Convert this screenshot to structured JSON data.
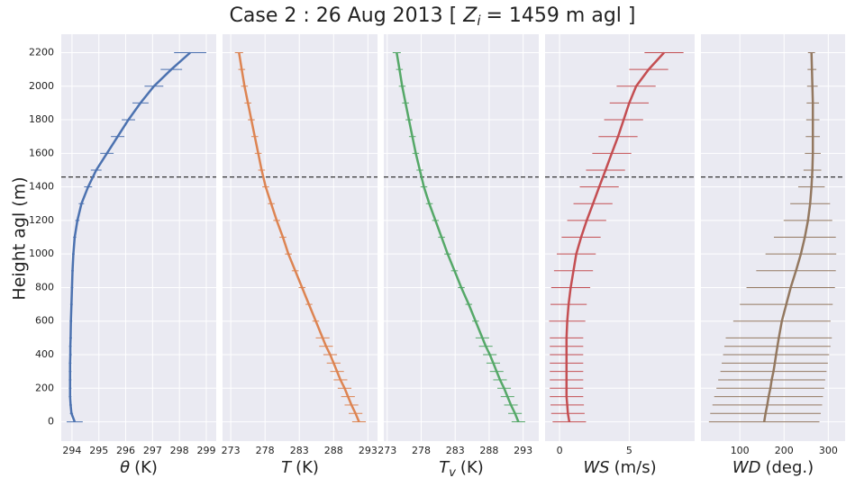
{
  "chart_data": {
    "type": "line",
    "title": {
      "prefix": "Case 2 : 26 Aug 2013 [",
      "var": "Z",
      "sub": "i",
      "suffix": "=  1459 m agl ]"
    },
    "zi": 1459,
    "ylabel": "Height agl (m)",
    "heights": [
      0,
      50,
      100,
      150,
      200,
      250,
      300,
      350,
      400,
      450,
      500,
      600,
      700,
      800,
      900,
      1000,
      1100,
      1200,
      1300,
      1400,
      1500,
      1600,
      1700,
      1800,
      1900,
      2000,
      2100,
      2200
    ],
    "ylim": [
      -115,
      2310
    ],
    "yticks": [
      0,
      200,
      400,
      600,
      800,
      1000,
      1200,
      1400,
      1600,
      1800,
      2000,
      2200
    ],
    "grid": true,
    "panels": [
      {
        "xlabel": {
          "var": "θ",
          "unit": "(K)"
        },
        "color": "#4c72b0",
        "xlim": [
          293.6,
          299.37
        ],
        "xticks": [
          294,
          295,
          296,
          297,
          298,
          299
        ],
        "values": [
          294.1,
          293.98,
          293.95,
          293.93,
          293.93,
          293.93,
          293.93,
          293.93,
          293.94,
          293.94,
          293.95,
          293.96,
          293.98,
          294.0,
          294.02,
          294.05,
          294.1,
          294.2,
          294.35,
          294.6,
          294.9,
          295.3,
          295.7,
          296.1,
          296.55,
          297.05,
          297.7,
          298.4
        ],
        "errors": [
          0.3,
          0.06,
          0.05,
          0.05,
          0.05,
          0.05,
          0.05,
          0.05,
          0.05,
          0.05,
          0.05,
          0.05,
          0.05,
          0.05,
          0.05,
          0.05,
          0.06,
          0.08,
          0.1,
          0.15,
          0.2,
          0.25,
          0.25,
          0.25,
          0.3,
          0.35,
          0.4,
          0.6
        ]
      },
      {
        "xlabel": {
          "var": "T",
          "unit": "(K)"
        },
        "color": "#dd8452",
        "xlim": [
          271.8,
          294.4
        ],
        "xticks": [
          273,
          278,
          283,
          288,
          293
        ],
        "values": [
          291.7,
          291.2,
          290.6,
          290.1,
          289.6,
          289.0,
          288.5,
          288.0,
          287.5,
          286.9,
          286.4,
          285.4,
          284.4,
          283.4,
          282.4,
          281.4,
          280.6,
          279.7,
          278.9,
          278.1,
          277.5,
          277.0,
          276.5,
          276.0,
          275.5,
          275.0,
          274.6,
          274.2
        ],
        "errors": [
          1.0,
          1.0,
          1.0,
          1.0,
          1.0,
          1.0,
          1.0,
          1.0,
          1.0,
          1.0,
          1.0,
          0.5,
          0.5,
          0.5,
          0.5,
          0.5,
          0.5,
          0.5,
          0.5,
          0.5,
          0.5,
          0.5,
          0.5,
          0.5,
          0.5,
          0.5,
          0.5,
          0.6
        ]
      },
      {
        "xlabel": {
          "var": "T",
          "sub": "v",
          "unit": "(K)"
        },
        "color": "#55a868",
        "xlim": [
          272.5,
          295.3
        ],
        "xticks": [
          273,
          278,
          283,
          288,
          293
        ],
        "values": [
          292.3,
          291.8,
          291.2,
          290.7,
          290.2,
          289.6,
          289.1,
          288.6,
          288.1,
          287.5,
          287.0,
          286.0,
          285.0,
          283.9,
          282.9,
          281.9,
          281.0,
          280.1,
          279.2,
          278.4,
          277.8,
          277.2,
          276.7,
          276.2,
          275.7,
          275.2,
          274.8,
          274.4
        ],
        "errors": [
          1.0,
          1.0,
          1.0,
          1.0,
          1.0,
          1.0,
          1.0,
          1.0,
          1.0,
          1.0,
          1.0,
          0.5,
          0.5,
          0.5,
          0.5,
          0.5,
          0.5,
          0.5,
          0.5,
          0.5,
          0.5,
          0.5,
          0.5,
          0.5,
          0.5,
          0.5,
          0.5,
          0.6
        ]
      },
      {
        "xlabel": {
          "var": "WS",
          "unit": "(m/s)"
        },
        "color": "#c44e52",
        "xlim": [
          -1.04,
          9.7
        ],
        "xticks": [
          0,
          5
        ],
        "values": [
          0.7,
          0.6,
          0.55,
          0.5,
          0.5,
          0.5,
          0.5,
          0.5,
          0.5,
          0.5,
          0.5,
          0.55,
          0.65,
          0.8,
          1.0,
          1.2,
          1.55,
          1.95,
          2.4,
          2.85,
          3.3,
          3.75,
          4.2,
          4.6,
          5.0,
          5.5,
          6.4,
          7.5
        ],
        "errors": [
          1.2,
          1.2,
          1.2,
          1.2,
          1.2,
          1.2,
          1.2,
          1.2,
          1.2,
          1.2,
          1.2,
          1.3,
          1.3,
          1.4,
          1.4,
          1.4,
          1.4,
          1.4,
          1.4,
          1.4,
          1.4,
          1.4,
          1.4,
          1.4,
          1.4,
          1.4,
          1.4,
          1.4
        ]
      },
      {
        "xlabel": {
          "var": "WD",
          "unit": "(deg.)"
        },
        "color": "#937860",
        "xlim": [
          12,
          338
        ],
        "xticks": [
          100,
          200,
          300
        ],
        "values": [
          155,
          158,
          162,
          165,
          169,
          172,
          176,
          179,
          182,
          185,
          188,
          195,
          205,
          215,
          227,
          238,
          247,
          254,
          259,
          262,
          264,
          265,
          265,
          265,
          265,
          264,
          263,
          262
        ],
        "errors": [
          125,
          125,
          124,
          123,
          122,
          121,
          120,
          120,
          120,
          120,
          120,
          110,
          105,
          100,
          90,
          80,
          70,
          55,
          45,
          30,
          20,
          18,
          16,
          15,
          14,
          12,
          10,
          8
        ]
      }
    ]
  }
}
